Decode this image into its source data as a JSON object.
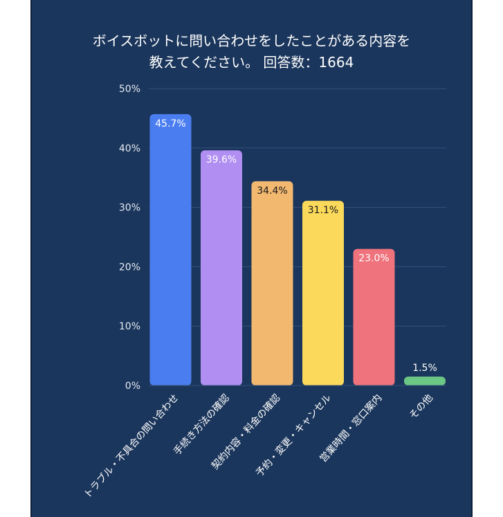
{
  "chart_data": {
    "type": "bar",
    "title_lines": [
      "ボイスボットに問い合わせをしたことがある内容を",
      "教えてください。 回答数：1664"
    ],
    "categories": [
      "トラブル・不具合の問い合わせ",
      "手続き方法の確認",
      "契約内容・料金の確認",
      "予約・変更・キャンセル",
      "営業時間・窓口案内",
      "その他"
    ],
    "values": [
      45.7,
      39.6,
      34.4,
      31.1,
      23.0,
      1.5
    ],
    "value_labels": [
      "45.7%",
      "39.6%",
      "34.4%",
      "31.1%",
      "23.0%",
      "1.5%"
    ],
    "ylim": [
      0,
      50
    ],
    "yticks": [
      0,
      10,
      20,
      30,
      40,
      50
    ],
    "ytick_labels": [
      "0%",
      "10%",
      "20%",
      "30%",
      "40%",
      "50%"
    ],
    "grid": true,
    "colors": [
      "#4a7ef0",
      "#b08ef2",
      "#f2b870",
      "#fbd95a",
      "#ef737c",
      "#6cc785"
    ],
    "label_colors": [
      "#ffffff",
      "#ffffff",
      "#1a1a1a",
      "#1a1a1a",
      "#ffffff",
      "#ffffff"
    ],
    "background": "#1b365c"
  }
}
